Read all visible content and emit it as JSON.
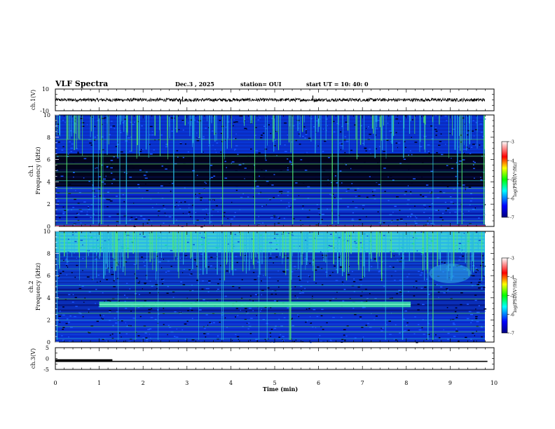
{
  "header": {
    "title": "VLF Spectra",
    "date": "Dec.3  , 2025",
    "station": "station= OUI",
    "start": "start  UT  =   10: 40: 0"
  },
  "chart_data": [
    {
      "type": "line",
      "name": "ch1-waveform",
      "ylabel": "ch.1(V)",
      "yticks": [
        "10",
        "-10"
      ],
      "ylim": [
        -10,
        10
      ],
      "xlim": [
        0,
        10
      ],
      "baseline": 0,
      "amplitude": 1.5,
      "spikes": [
        {
          "x": 2.85,
          "y": -4
        },
        {
          "x": 2.9,
          "y": 3
        },
        {
          "x": 5.87,
          "y": 4
        },
        {
          "x": 5.9,
          "y": -2
        }
      ]
    },
    {
      "type": "heatmap",
      "name": "ch1-spectrogram",
      "ylabel_line1": "ch.1",
      "ylabel_line2": "Frequency  (kHz)",
      "ylim": [
        0,
        10
      ],
      "xlim": [
        0,
        9.85
      ],
      "yticks": [
        "0",
        "2",
        "4",
        "6",
        "8",
        "10"
      ],
      "features": [
        {
          "kind": "low-band",
          "fmin": 0,
          "fmax": 3.5,
          "level": "blue"
        },
        {
          "kind": "dark-band",
          "fmin": 3.5,
          "fmax": 6.5,
          "level": "black"
        },
        {
          "kind": "sferics-top",
          "fmin": 6.5,
          "fmax": 10,
          "level": "blue-green"
        }
      ],
      "colorbar": {
        "label": "log(PSD)(V²/Hz)",
        "ticks": [
          "-3",
          "-4",
          "-5",
          "-6",
          "-7"
        ],
        "range": [
          -7,
          -3
        ]
      }
    },
    {
      "type": "heatmap",
      "name": "ch2-spectrogram",
      "ylabel_line1": "ch.2",
      "ylabel_line2": "Frequency  (kHz)",
      "ylim": [
        0,
        10
      ],
      "xlim": [
        0,
        9.85
      ],
      "yticks": [
        "0",
        "2",
        "4",
        "6",
        "8",
        "10"
      ],
      "features": [
        {
          "kind": "strong-top",
          "fmin": 8,
          "fmax": 10,
          "level": "cyan-green"
        },
        {
          "kind": "emission-line",
          "f": 3.4,
          "tmin": 1.0,
          "tmax": 8.1
        },
        {
          "kind": "low-band",
          "fmin": 0,
          "fmax": 2.5,
          "level": "blue"
        }
      ],
      "colorbar": {
        "label": "log(PSD)(V²/Hz)",
        "ticks": [
          "-3",
          "-4",
          "-5",
          "-6",
          "-7"
        ],
        "range": [
          -7,
          -3
        ]
      }
    },
    {
      "type": "line",
      "name": "ch3-level",
      "ylabel": "ch.3(V)",
      "yticks": [
        "5",
        "0",
        "-5"
      ],
      "ylim": [
        -5,
        5
      ],
      "xlim": [
        0,
        10
      ],
      "segments": [
        {
          "x0": 0,
          "x1": 1.3,
          "y": -0.8,
          "bold": true
        },
        {
          "x0": 0,
          "x1": 9.85,
          "y": -1.3,
          "bold": false
        }
      ]
    }
  ],
  "xaxis": {
    "label": "Time  (min)",
    "ticks": [
      "0",
      "1",
      "2",
      "3",
      "4",
      "5",
      "6",
      "7",
      "8",
      "9",
      "10"
    ],
    "xlim": [
      0,
      10
    ]
  }
}
